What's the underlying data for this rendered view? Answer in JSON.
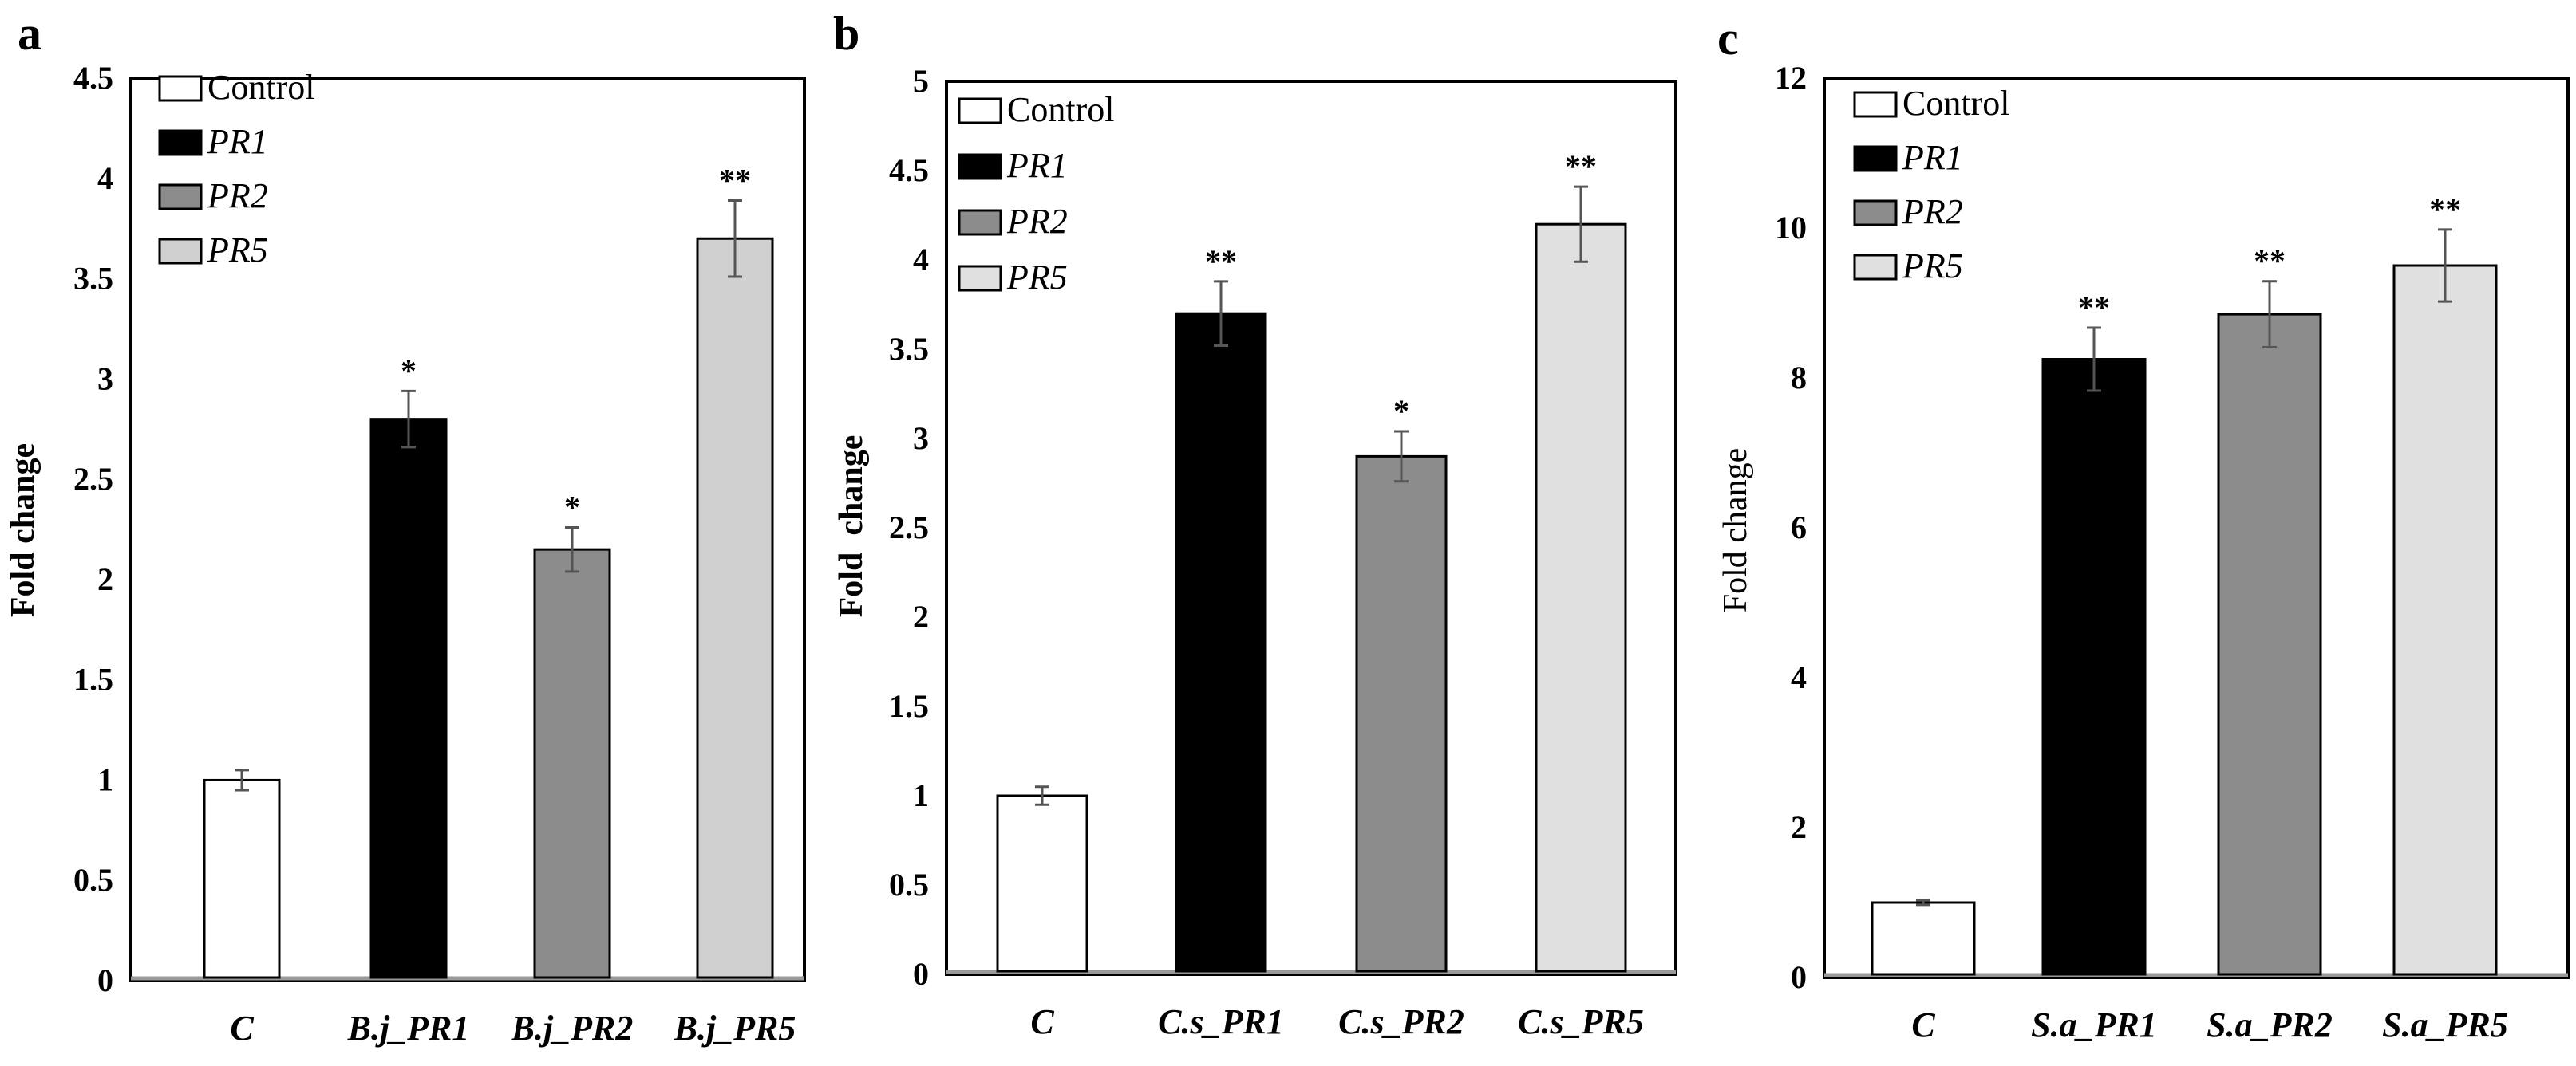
{
  "chart_data": [
    {
      "panel": "a",
      "type": "bar",
      "title": "",
      "xlabel": "",
      "ylabel": "Fold change",
      "ylabel_bold": true,
      "ylim": [
        0,
        4.5
      ],
      "yticks": [
        "0",
        "0.5",
        "1",
        "1.5",
        "2",
        "2.5",
        "3",
        "3.5",
        "4",
        "4.5"
      ],
      "categories": [
        "C",
        "B.j_PR1",
        "B.j_PR2",
        "B.j_PR5"
      ],
      "values": [
        1.0,
        2.8,
        2.15,
        3.7
      ],
      "errors": [
        0.05,
        0.14,
        0.11,
        0.19
      ],
      "significance": [
        "",
        "*",
        "*",
        "**"
      ],
      "bar_colors": [
        "#ffffff",
        "#000000",
        "#8c8c8c",
        "#d0d0d0"
      ],
      "legend": {
        "position": "top-left",
        "entries": [
          {
            "label": "Control",
            "color": "#ffffff",
            "italic": false
          },
          {
            "label": "PR1",
            "color": "#000000",
            "italic": true
          },
          {
            "label": "PR2",
            "color": "#8c8c8c",
            "italic": true
          },
          {
            "label": "PR5",
            "color": "#d0d0d0",
            "italic": true
          }
        ]
      }
    },
    {
      "panel": "b",
      "type": "bar",
      "title": "",
      "xlabel": "",
      "ylabel": "Fold  change",
      "ylabel_bold": true,
      "ylim": [
        0,
        5
      ],
      "yticks": [
        "0",
        "0.5",
        "1",
        "1.5",
        "2",
        "2.5",
        "3",
        "3.5",
        "4",
        "4.5",
        "5"
      ],
      "categories": [
        "C",
        "C.s_PR1",
        "C.s_PR2",
        "C.s_PR5"
      ],
      "values": [
        1.0,
        3.7,
        2.9,
        4.2
      ],
      "errors": [
        0.05,
        0.18,
        0.14,
        0.21
      ],
      "significance": [
        "",
        "**",
        "*",
        "**"
      ],
      "bar_colors": [
        "#ffffff",
        "#000000",
        "#8c8c8c",
        "#e0e0e0"
      ],
      "legend": {
        "position": "top-left",
        "entries": [
          {
            "label": "Control",
            "color": "#ffffff",
            "italic": false
          },
          {
            "label": "PR1",
            "color": "#000000",
            "italic": true
          },
          {
            "label": "PR2",
            "color": "#8c8c8c",
            "italic": true
          },
          {
            "label": "PR5",
            "color": "#e0e0e0",
            "italic": true
          }
        ]
      }
    },
    {
      "panel": "c",
      "type": "bar",
      "title": "",
      "xlabel": "",
      "ylabel": "Fold change",
      "ylabel_bold": false,
      "ylim": [
        0,
        12
      ],
      "yticks": [
        "0",
        "2",
        "4",
        "6",
        "8",
        "10",
        "12"
      ],
      "categories": [
        "C",
        "S.a_PR1",
        "S.a_PR2",
        "S.a_PR5"
      ],
      "values": [
        1.0,
        8.25,
        8.85,
        9.5
      ],
      "errors": [
        0.03,
        0.42,
        0.44,
        0.48
      ],
      "significance": [
        "",
        "**",
        "**",
        "**"
      ],
      "bar_colors": [
        "#ffffff",
        "#000000",
        "#8c8c8c",
        "#e0e0e0"
      ],
      "legend": {
        "position": "top-left",
        "entries": [
          {
            "label": "Control",
            "color": "#ffffff",
            "italic": false
          },
          {
            "label": "PR1",
            "color": "#000000",
            "italic": true
          },
          {
            "label": "PR2",
            "color": "#8c8c8c",
            "italic": true
          },
          {
            "label": "PR5",
            "color": "#e0e0e0",
            "italic": true
          }
        ]
      }
    }
  ]
}
